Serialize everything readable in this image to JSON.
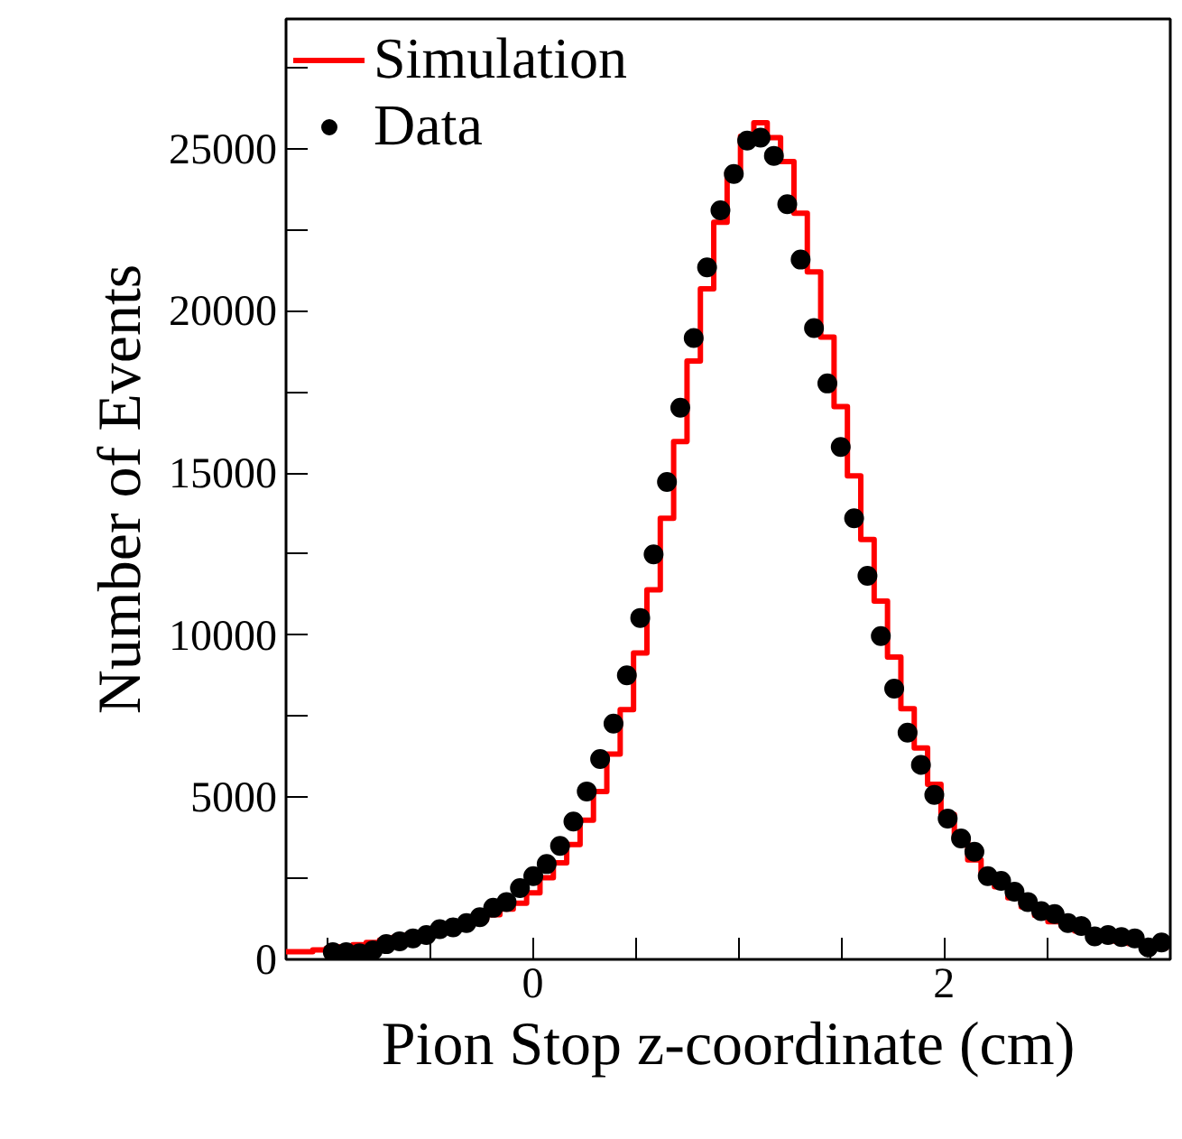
{
  "chart_data": {
    "type": "histogram",
    "xlabel": "Pion Stop z-coordinate (cm)",
    "ylabel": "Number of Events",
    "bins": [
      -1.2,
      -1.135,
      -1.07,
      -1.005,
      -0.94,
      -0.875,
      -0.81,
      -0.745,
      -0.68,
      -0.615,
      -0.55,
      -0.485,
      -0.42,
      -0.355,
      -0.29,
      -0.225,
      -0.16,
      -0.095,
      -0.03,
      0.035,
      0.1,
      0.165,
      0.23,
      0.295,
      0.36,
      0.425,
      0.49,
      0.555,
      0.62,
      0.685,
      0.75,
      0.815,
      0.88,
      0.945,
      1.01,
      1.075,
      1.14,
      1.205,
      1.27,
      1.335,
      1.4,
      1.465,
      1.53,
      1.595,
      1.66,
      1.725,
      1.79,
      1.855,
      1.92,
      1.985,
      2.05,
      2.115,
      2.18,
      2.245,
      2.31,
      2.375,
      2.44,
      2.505,
      2.57,
      2.635,
      2.7,
      2.765,
      2.83,
      2.895,
      2.96,
      3.025,
      3.09
    ],
    "series": [
      {
        "name": "Simulation",
        "color": "#ff0000",
        "values": [
          240,
          240,
          290,
          340,
          390,
          450,
          520,
          600,
          680,
          760,
          820,
          920,
          1000,
          1100,
          1220,
          1380,
          1550,
          1730,
          2050,
          2520,
          2980,
          3540,
          4290,
          5180,
          6330,
          7700,
          9450,
          11400,
          13600,
          15970,
          18450,
          20680,
          22730,
          24280,
          25380,
          25800,
          25340,
          24600,
          23010,
          21200,
          19190,
          17050,
          14910,
          12950,
          11050,
          9320,
          7730,
          6520,
          5400,
          4470,
          3730,
          3070,
          2610,
          2240,
          1900,
          1620,
          1360,
          1160,
          1020,
          880,
          740,
          650,
          560,
          490,
          430,
          370
        ]
      },
      {
        "name": "Data",
        "type": "scatter",
        "color": "#000000",
        "marker": "circle",
        "x": [
          -0.9725,
          -0.9075,
          -0.8425,
          -0.7775,
          -0.7125,
          -0.6475,
          -0.5825,
          -0.5175,
          -0.4525,
          -0.3875,
          -0.3225,
          -0.2575,
          -0.1925,
          -0.1275,
          -0.0625,
          0.0025,
          0.0675,
          0.1325,
          0.1975,
          0.2625,
          0.3275,
          0.3925,
          0.4575,
          0.5225,
          0.5875,
          0.6525,
          0.7175,
          0.7825,
          0.8475,
          0.9125,
          0.9775,
          1.0425,
          1.1075,
          1.1725,
          1.2375,
          1.3025,
          1.3675,
          1.4325,
          1.4975,
          1.5625,
          1.6275,
          1.6925,
          1.7575,
          1.8225,
          1.8875,
          1.9525,
          2.0175,
          2.0825,
          2.1475,
          2.2125,
          2.2775,
          2.3425,
          2.4075,
          2.4725,
          2.5375,
          2.6025,
          2.6675,
          2.7325,
          2.7975,
          2.8625,
          2.9275,
          2.9925,
          3.0575
        ],
        "values": [
          220,
          220,
          190,
          280,
          470,
          560,
          650,
          750,
          930,
          990,
          1120,
          1300,
          1590,
          1770,
          2200,
          2570,
          2940,
          3500,
          4250,
          5180,
          6180,
          7270,
          8760,
          10530,
          12490,
          14720,
          17010,
          19160,
          21340,
          23100,
          24220,
          25250,
          25340,
          24780,
          23290,
          21580,
          19470,
          17760,
          15800,
          13600,
          11830,
          9970,
          8350,
          6990,
          6000,
          5070,
          4340,
          3730,
          3320,
          2570,
          2420,
          2090,
          1770,
          1490,
          1400,
          1120,
          1030,
          710,
          750,
          690,
          650,
          370,
          520
        ]
      }
    ],
    "xlim": [
      -1.2,
      3.1
    ],
    "ylim": [
      0,
      29000
    ],
    "xticks": [
      {
        "value": -1,
        "label": null
      },
      {
        "value": -0.5,
        "label": null
      },
      0,
      {
        "value": 0.5,
        "label": null
      },
      {
        "value": 1,
        "label": null
      },
      {
        "value": 1.5,
        "label": null
      },
      2,
      {
        "value": 2.5,
        "label": null
      },
      {
        "value": 3,
        "label": null
      }
    ],
    "yticks": [
      0,
      {
        "value": 2500,
        "label": null
      },
      5000,
      {
        "value": 7500,
        "label": null
      },
      10000,
      {
        "value": 12500,
        "label": null
      },
      15000,
      {
        "value": 17500,
        "label": null
      },
      20000,
      {
        "value": 22500,
        "label": null
      },
      25000,
      {
        "value": 27500,
        "label": null
      }
    ],
    "grid": false,
    "legend": "top left"
  }
}
